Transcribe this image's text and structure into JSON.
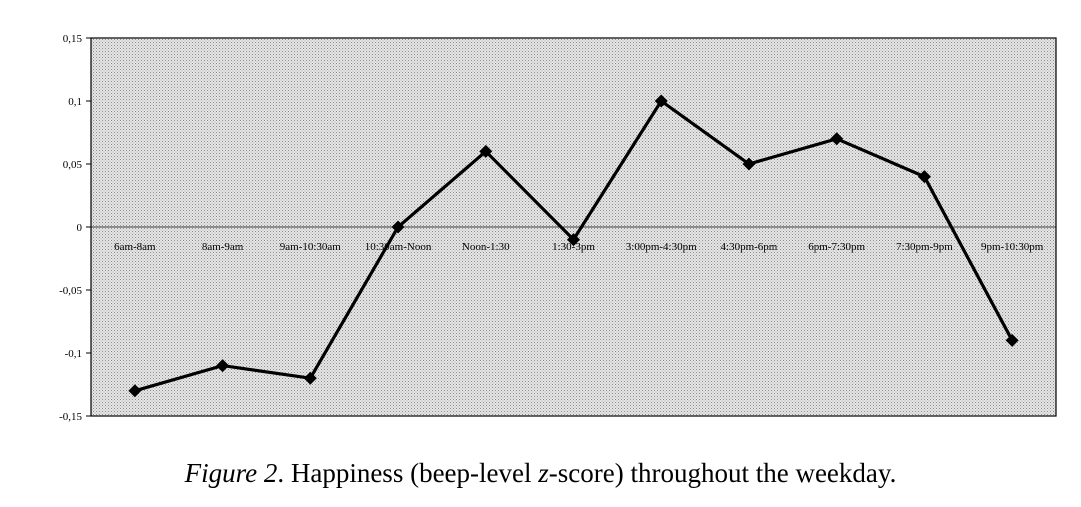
{
  "chart_data": {
    "type": "line",
    "categories": [
      "6am-8am",
      "8am-9am",
      "9am-10:30am",
      "10:30am-Noon",
      "Noon-1:30",
      "1:30-3pm",
      "3:00pm-4:30pm",
      "4:30pm-6pm",
      "6pm-7:30pm",
      "7:30pm-9pm",
      "9pm-10:30pm"
    ],
    "values": [
      -0.13,
      -0.11,
      -0.12,
      0.0,
      0.06,
      -0.01,
      0.1,
      0.05,
      0.07,
      0.04,
      -0.09
    ],
    "ylim": [
      -0.15,
      0.15
    ],
    "yticks": [
      0.15,
      0.1,
      0.05,
      0,
      -0.05,
      -0.1,
      -0.15
    ],
    "ytick_labels": [
      "0,15",
      "0,1",
      "0,05",
      "0",
      "-0,05",
      "-0,1",
      "-0,15"
    ],
    "grid": false,
    "plot_background": "dotted-gray",
    "line_color": "#000000",
    "marker": "diamond"
  },
  "caption": {
    "figure_label": "Figure 2",
    "text_before_z": ".  Happiness (beep-level ",
    "z": "z",
    "text_after_z": "-score) throughout the weekday."
  }
}
